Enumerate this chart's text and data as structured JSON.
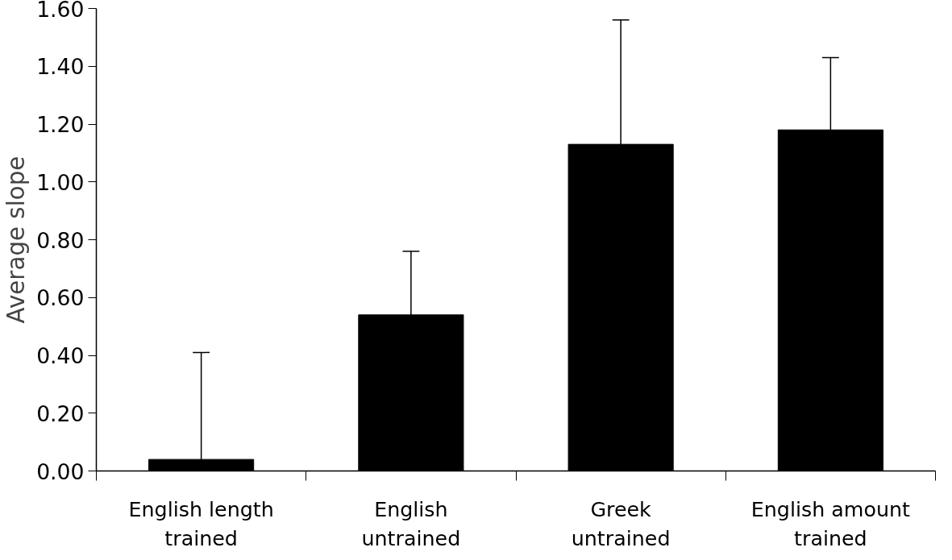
{
  "chart_data": {
    "type": "bar",
    "ylabel": "Average slope",
    "categories": [
      "English length trained",
      "English untrained",
      "Greek untrained",
      "English amount trained"
    ],
    "values": [
      0.04,
      0.54,
      1.13,
      1.18
    ],
    "errors": [
      [
        0.04,
        0.41
      ],
      [
        0.54,
        0.76
      ],
      [
        1.13,
        1.56
      ],
      [
        1.18,
        1.43
      ]
    ],
    "color": "#000000",
    "ylim": [
      0,
      1.6
    ],
    "yticks": [
      {
        "value": 0,
        "label": "0.00"
      },
      {
        "value": 0.2,
        "label": "0.20"
      },
      {
        "value": 0.4,
        "label": "0.40"
      },
      {
        "value": 0.6,
        "label": "0.60"
      },
      {
        "value": 0.8,
        "label": "0.80"
      },
      {
        "value": 1.0,
        "label": "1.00"
      },
      {
        "value": 1.2,
        "label": "1.20"
      },
      {
        "value": 1.4,
        "label": "1.40"
      },
      {
        "value": 1.6,
        "label": "1.60"
      }
    ],
    "grid": false
  }
}
